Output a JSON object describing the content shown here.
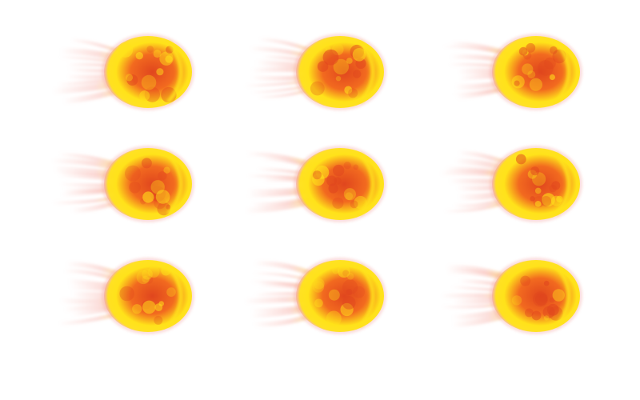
{
  "sprite_sheet": {
    "rows": 3,
    "columns": 3,
    "colors": {
      "core_dark": "#e0461e",
      "core_mid": "#f26a1f",
      "glow": "#ffe21a",
      "rim": "#f4a3a0",
      "tail": "#f7b0a8"
    },
    "frames": [
      {
        "row": 1,
        "col": 1,
        "icon": "fireball-icon",
        "variant": 0
      },
      {
        "row": 1,
        "col": 2,
        "icon": "fireball-icon",
        "variant": 1
      },
      {
        "row": 1,
        "col": 3,
        "icon": "fireball-icon",
        "variant": 2
      },
      {
        "row": 2,
        "col": 1,
        "icon": "fireball-icon",
        "variant": 3
      },
      {
        "row": 2,
        "col": 2,
        "icon": "fireball-icon",
        "variant": 4
      },
      {
        "row": 2,
        "col": 3,
        "icon": "fireball-icon",
        "variant": 5
      },
      {
        "row": 3,
        "col": 1,
        "icon": "fireball-icon",
        "variant": 6
      },
      {
        "row": 3,
        "col": 2,
        "icon": "fireball-icon",
        "variant": 7
      },
      {
        "row": 3,
        "col": 3,
        "icon": "fireball-icon",
        "variant": 8
      }
    ]
  }
}
